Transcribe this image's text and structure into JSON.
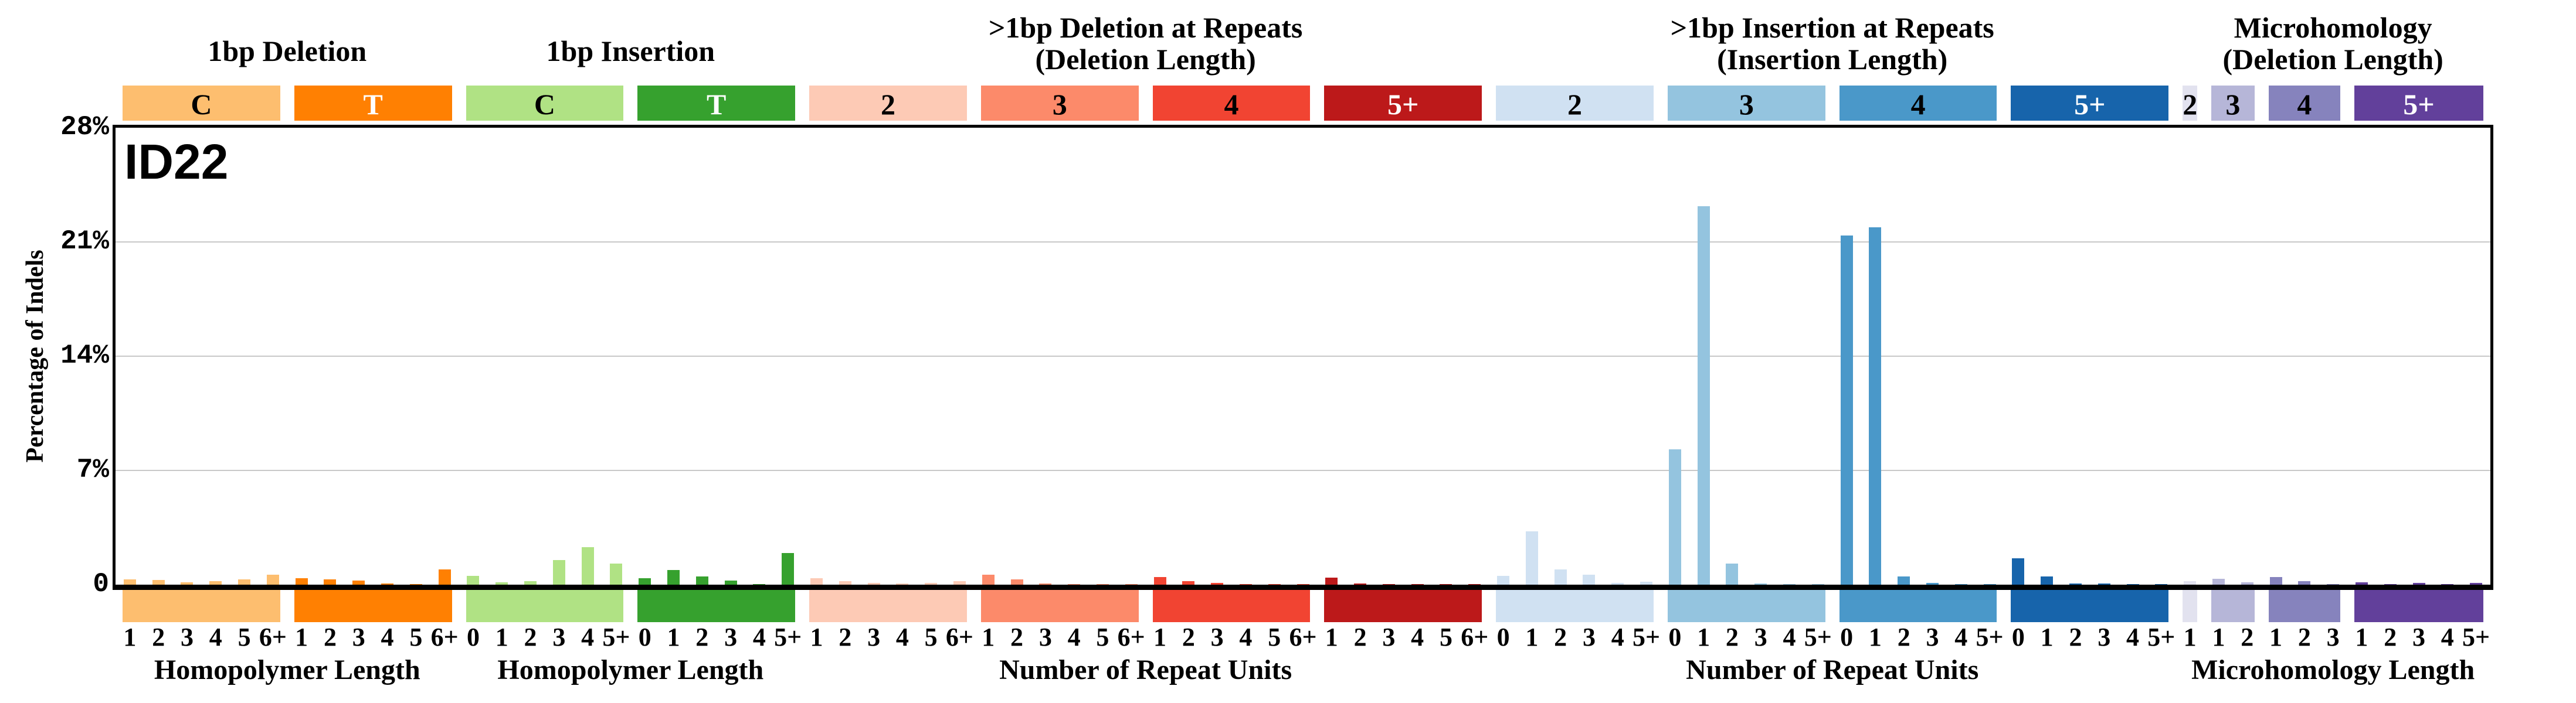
{
  "chart_data": {
    "type": "bar",
    "title": "ID22",
    "ylabel": "Percentage of Indels",
    "ylim": [
      0,
      28
    ],
    "y_ticks": [
      {
        "value": 0,
        "label": "0"
      },
      {
        "value": 7,
        "label": "7%"
      },
      {
        "value": 14,
        "label": "14%"
      },
      {
        "value": 21,
        "label": "21%"
      },
      {
        "value": 28,
        "label": "28%"
      }
    ],
    "grid_values": [
      7,
      14,
      21
    ],
    "grid": true,
    "legend": "none",
    "sections": [
      {
        "title_lines": [
          "1bp Deletion"
        ],
        "xlabel": "Homopolymer Length",
        "groups": [
          0,
          1
        ]
      },
      {
        "title_lines": [
          "1bp Insertion"
        ],
        "xlabel": "Homopolymer Length",
        "groups": [
          2,
          3
        ]
      },
      {
        "title_lines": [
          ">1bp Deletion at Repeats",
          "(Deletion Length)"
        ],
        "xlabel": "Number of Repeat Units",
        "groups": [
          4,
          5,
          6,
          7
        ]
      },
      {
        "title_lines": [
          ">1bp Insertion at Repeats",
          "(Insertion Length)"
        ],
        "xlabel": "Number of Repeat Units",
        "groups": [
          8,
          9,
          10,
          11
        ]
      },
      {
        "title_lines": [
          "Microhomology",
          "(Deletion Length)"
        ],
        "xlabel": "Microhomology Length",
        "groups": [
          12,
          13,
          14,
          15
        ]
      }
    ],
    "groups": [
      {
        "category": "1bp-deletion",
        "label": "C",
        "color": "#FDBE6F",
        "label_color": "#000000",
        "ticks": [
          "1",
          "2",
          "3",
          "4",
          "5",
          "6+"
        ],
        "values": [
          0.32,
          0.27,
          0.15,
          0.2,
          0.32,
          0.62
        ]
      },
      {
        "category": "1bp-deletion",
        "label": "T",
        "color": "#FF8002",
        "label_color": "#ffffff",
        "ticks": [
          "1",
          "2",
          "3",
          "4",
          "5",
          "6+"
        ],
        "values": [
          0.4,
          0.32,
          0.24,
          0.06,
          0.03,
          0.95
        ]
      },
      {
        "category": "1bp-insertion",
        "label": "C",
        "color": "#B0E284",
        "label_color": "#000000",
        "ticks": [
          "0",
          "1",
          "2",
          "3",
          "4",
          "5+"
        ],
        "values": [
          0.55,
          0.16,
          0.22,
          1.5,
          2.3,
          1.28
        ]
      },
      {
        "category": "1bp-insertion",
        "label": "T",
        "color": "#36A12E",
        "label_color": "#ffffff",
        "ticks": [
          "0",
          "1",
          "2",
          "3",
          "4",
          "5+"
        ],
        "values": [
          0.38,
          0.9,
          0.52,
          0.26,
          0.03,
          1.95
        ]
      },
      {
        "category": "deletion-at-repeats",
        "label": "2",
        "color": "#FDCAB5",
        "label_color": "#000000",
        "ticks": [
          "1",
          "2",
          "3",
          "4",
          "5",
          "6+"
        ],
        "values": [
          0.4,
          0.22,
          0.1,
          0.07,
          0.1,
          0.2
        ]
      },
      {
        "category": "deletion-at-repeats",
        "label": "3",
        "color": "#FC8A6A",
        "label_color": "#000000",
        "ticks": [
          "1",
          "2",
          "3",
          "4",
          "5",
          "6+"
        ],
        "values": [
          0.6,
          0.33,
          0.08,
          0.03,
          0.02,
          0.03
        ]
      },
      {
        "category": "deletion-at-repeats",
        "label": "4",
        "color": "#F14432",
        "label_color": "#000000",
        "ticks": [
          "1",
          "2",
          "3",
          "4",
          "5",
          "6+"
        ],
        "values": [
          0.45,
          0.2,
          0.1,
          0.03,
          0.02,
          0.02
        ]
      },
      {
        "category": "deletion-at-repeats",
        "label": "5+",
        "color": "#BC191A",
        "label_color": "#ffffff",
        "ticks": [
          "1",
          "2",
          "3",
          "4",
          "5",
          "6+"
        ],
        "values": [
          0.42,
          0.08,
          0.03,
          0.02,
          0.02,
          0.02
        ]
      },
      {
        "category": "insertion-at-repeats",
        "label": "2",
        "color": "#D0E1F2",
        "label_color": "#000000",
        "ticks": [
          "0",
          "1",
          "2",
          "3",
          "4",
          "5+"
        ],
        "values": [
          0.55,
          3.25,
          0.92,
          0.6,
          0.1,
          0.17
        ]
      },
      {
        "category": "insertion-at-repeats",
        "label": "3",
        "color": "#94C4DF",
        "label_color": "#000000",
        "ticks": [
          "0",
          "1",
          "2",
          "3",
          "4",
          "5+"
        ],
        "values": [
          8.3,
          23.2,
          1.3,
          0.06,
          0.02,
          0.02
        ]
      },
      {
        "category": "insertion-at-repeats",
        "label": "4",
        "color": "#4A98C9",
        "label_color": "#000000",
        "ticks": [
          "0",
          "1",
          "2",
          "3",
          "4",
          "5+"
        ],
        "values": [
          21.4,
          21.9,
          0.5,
          0.1,
          0.02,
          0.02
        ]
      },
      {
        "category": "insertion-at-repeats",
        "label": "5+",
        "color": "#1764AB",
        "label_color": "#ffffff",
        "ticks": [
          "0",
          "1",
          "2",
          "3",
          "4",
          "5+"
        ],
        "values": [
          1.6,
          0.5,
          0.06,
          0.06,
          0.03,
          0.03
        ]
      },
      {
        "category": "microhomology",
        "label": "2",
        "color": "#E2E2EF",
        "label_color": "#000000",
        "ticks": [
          "1"
        ],
        "values": [
          0.22
        ]
      },
      {
        "category": "microhomology",
        "label": "3",
        "color": "#B6B6D8",
        "label_color": "#000000",
        "ticks": [
          "1",
          "2"
        ],
        "values": [
          0.35,
          0.16
        ]
      },
      {
        "category": "microhomology",
        "label": "4",
        "color": "#8683BD",
        "label_color": "#000000",
        "ticks": [
          "1",
          "2",
          "3"
        ],
        "values": [
          0.45,
          0.2,
          0.03
        ]
      },
      {
        "category": "microhomology",
        "label": "5+",
        "color": "#62409B",
        "label_color": "#ffffff",
        "ticks": [
          "1",
          "2",
          "3",
          "4",
          "5+"
        ],
        "values": [
          0.13,
          0.04,
          0.1,
          0.02,
          0.1
        ]
      }
    ]
  }
}
